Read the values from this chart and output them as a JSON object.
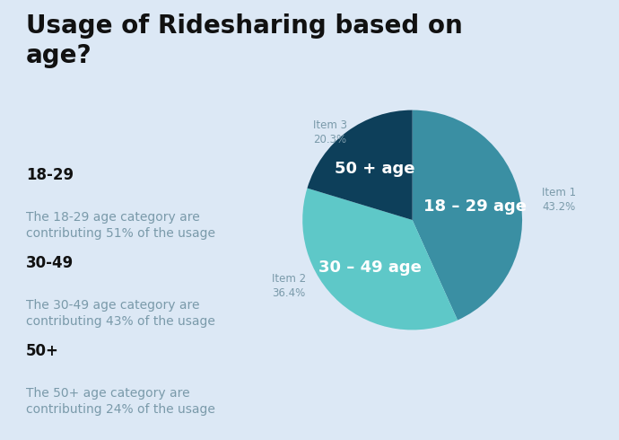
{
  "title": "Usage of Ridesharing based on\nage?",
  "background_color": "#dce8f5",
  "slices": [
    43.2,
    36.4,
    20.3
  ],
  "slice_labels_inside": [
    "18 – 29 age",
    "30 – 49 age",
    "50 + age"
  ],
  "slice_labels_outside": [
    "Item 1\n43.2%",
    "Item 2\n36.4%",
    "Item 3\n20.3%"
  ],
  "slice_colors": [
    "#3a8fa3",
    "#5ec8c8",
    "#0d3f5a"
  ],
  "legend_headers": [
    "18-29",
    "30-49",
    "50+"
  ],
  "legend_texts": [
    "The 18-29 age category are\ncontributing 51% of the usage",
    "The 30-49 age category are\ncontributing 43% of the usage",
    "The 50+ age category are\ncontributing 24% of the usage"
  ],
  "title_fontsize": 20,
  "legend_header_fontsize": 12,
  "legend_text_fontsize": 10,
  "inside_label_fontsize": 13,
  "outside_label_fontsize": 8.5,
  "outside_label_color": "#7a9aaa",
  "text_color_dark": "#111111",
  "text_color_gray": "#7a9aaa"
}
